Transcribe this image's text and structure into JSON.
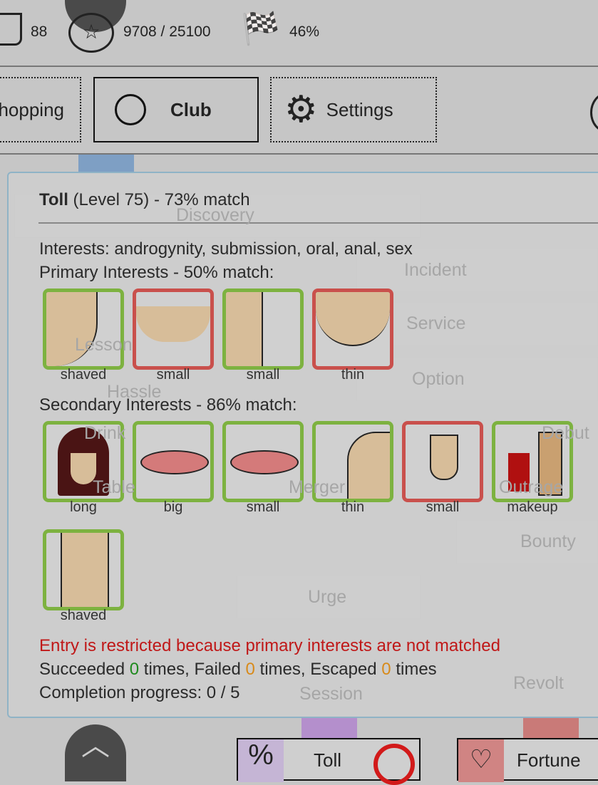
{
  "topbar": {
    "stat1": "88",
    "stat2": "9708 / 25100",
    "stat3": "46%"
  },
  "nav": {
    "shopping": "hopping",
    "club": "Club",
    "settings": "Settings"
  },
  "background_nodes": [
    "Discovery",
    "Incident",
    "Lesson",
    "Service",
    "Hassle",
    "Option",
    "Drink",
    "Debut",
    "Table",
    "Merger",
    "Outrage",
    "Bounty",
    "Urge",
    "Session",
    "Revolt"
  ],
  "popup": {
    "name": "Toll",
    "level": "(Level 75) - 73% match",
    "interests": "Interests: androgynity, submission, oral, anal, sex",
    "primary_heading": "Primary Interests - 50% match:",
    "primary": [
      {
        "label": "shaved",
        "icon": "face-chin",
        "matched": true
      },
      {
        "label": "small",
        "icon": "breasts",
        "matched": false
      },
      {
        "label": "small",
        "icon": "nose",
        "matched": true
      },
      {
        "label": "thin",
        "icon": "face-jaw",
        "matched": false
      }
    ],
    "secondary_heading": "Secondary Interests - 86% match:",
    "secondary": [
      {
        "label": "long",
        "icon": "hair",
        "matched": true
      },
      {
        "label": "big",
        "icon": "lips",
        "matched": true
      },
      {
        "label": "small",
        "icon": "lips",
        "matched": true
      },
      {
        "label": "thin",
        "icon": "shoulder",
        "matched": true
      },
      {
        "label": "small",
        "icon": "penis",
        "matched": false
      },
      {
        "label": "makeup",
        "icon": "makeup",
        "matched": true
      },
      {
        "label": "shaved",
        "icon": "belly",
        "matched": true
      }
    ],
    "restriction": "Entry is restricted because primary interests are not matched",
    "stats": {
      "succeeded_prefix": "Succeeded ",
      "succeeded": "0",
      "failed_prefix": " times, Failed ",
      "failed": "0",
      "escaped_prefix": " times, Escaped ",
      "escaped": "0",
      "suffix": " times"
    },
    "progress": "Completion progress: 0 / 5"
  },
  "bottom": {
    "toll": "Toll",
    "fortune": "Fortune"
  },
  "colors": {
    "matched": "#7db240",
    "unmatched": "#c9504c",
    "restriction": "#c01818",
    "success": "#1e8a1e",
    "warn": "#d88a1a"
  }
}
